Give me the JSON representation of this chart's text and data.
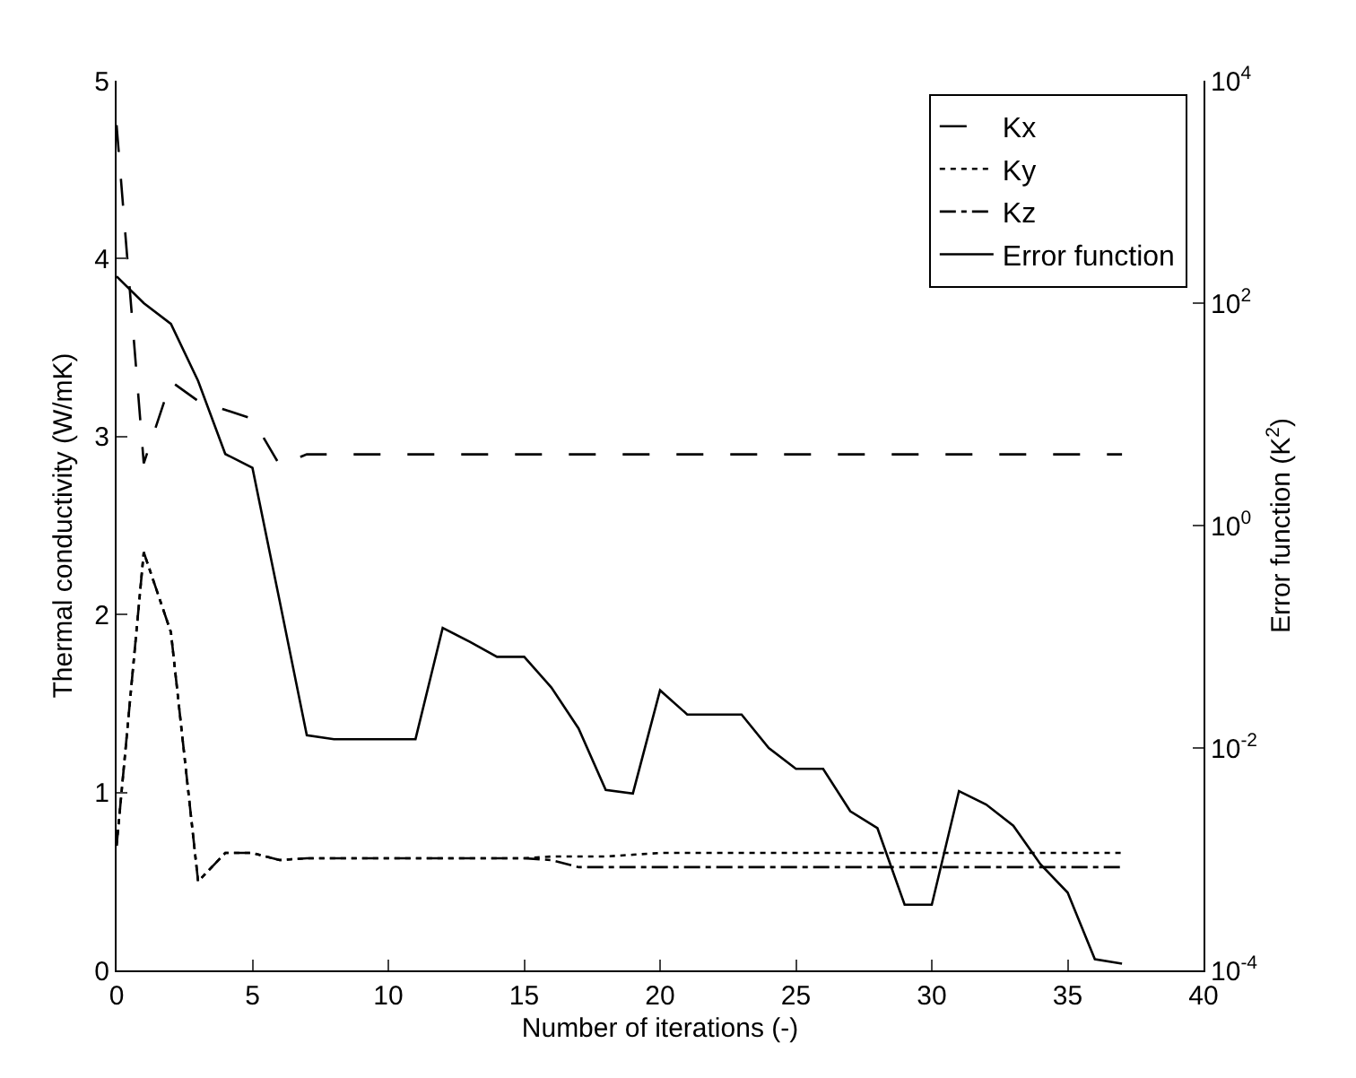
{
  "chart_data": {
    "type": "line",
    "xlabel": "Number of iterations (-)",
    "ylabel": "Thermal conductivity (W/mK)",
    "y2label": "Error function (K$^{2}$)",
    "x": [
      0,
      1,
      2,
      3,
      4,
      5,
      6,
      7,
      8,
      9,
      10,
      11,
      12,
      13,
      14,
      15,
      16,
      17,
      18,
      19,
      20,
      21,
      22,
      23,
      24,
      25,
      26,
      27,
      28,
      29,
      30,
      31,
      32,
      33,
      34,
      35,
      36,
      37
    ],
    "series": [
      {
        "name": "Kx",
        "color": "#000000",
        "line_style": "dashed",
        "values": [
          4.75,
          2.85,
          3.31,
          3.2,
          3.15,
          3.1,
          2.84,
          2.9,
          2.9,
          2.9,
          2.9,
          2.9,
          2.9,
          2.9,
          2.9,
          2.9,
          2.9,
          2.9,
          2.9,
          2.9,
          2.9,
          2.9,
          2.9,
          2.9,
          2.9,
          2.9,
          2.9,
          2.9,
          2.9,
          2.9,
          2.9,
          2.9,
          2.9,
          2.9,
          2.9,
          2.9,
          2.9,
          2.9
        ]
      },
      {
        "name": "Ky",
        "color": "#000000",
        "line_style": "dotted",
        "values": [
          0.7,
          2.35,
          1.9,
          0.5,
          0.66,
          0.66,
          0.62,
          0.63,
          0.63,
          0.63,
          0.63,
          0.63,
          0.63,
          0.63,
          0.63,
          0.63,
          0.64,
          0.64,
          0.64,
          0.65,
          0.66,
          0.66,
          0.66,
          0.66,
          0.66,
          0.66,
          0.66,
          0.66,
          0.66,
          0.66,
          0.66,
          0.66,
          0.66,
          0.66,
          0.66,
          0.66,
          0.66,
          0.66
        ]
      },
      {
        "name": "Kz",
        "color": "#000000",
        "line_style": "dashdot",
        "values": [
          0.7,
          2.35,
          1.9,
          0.5,
          0.66,
          0.66,
          0.62,
          0.63,
          0.63,
          0.63,
          0.63,
          0.63,
          0.63,
          0.63,
          0.63,
          0.63,
          0.62,
          0.58,
          0.58,
          0.58,
          0.58,
          0.58,
          0.58,
          0.58,
          0.58,
          0.58,
          0.58,
          0.58,
          0.58,
          0.58,
          0.58,
          0.58,
          0.58,
          0.58,
          0.58,
          0.58,
          0.58,
          0.58
        ]
      },
      {
        "name": "Error function",
        "color": "#000000",
        "line_style": "solid",
        "axis": "y2",
        "values": [
          174,
          100,
          65,
          20,
          4.4,
          3.3,
          0.21,
          0.013,
          0.012,
          0.012,
          0.012,
          0.012,
          0.12,
          0.09,
          0.066,
          0.066,
          0.035,
          0.015,
          0.0042,
          0.0039,
          0.033,
          0.02,
          0.02,
          0.02,
          0.01,
          0.0065,
          0.0065,
          0.0027,
          0.0019,
          0.00039,
          0.00039,
          0.0041,
          0.0031,
          0.002,
          0.0009,
          0.0005,
          0.000126,
          0.000115
        ]
      }
    ],
    "xlim": [
      0,
      40
    ],
    "xticks": [
      0,
      5,
      10,
      15,
      20,
      25,
      30,
      35,
      40
    ],
    "ylim": [
      0,
      5
    ],
    "yticks": [
      0,
      1,
      2,
      3,
      4,
      5
    ],
    "y2lim": [
      0.0001,
      10000
    ],
    "y2ticks": [
      {
        "value": 0.0001,
        "label": "10$^{-4}$"
      },
      {
        "value": 0.01,
        "label": "10$^{-2}$"
      },
      {
        "value": 1,
        "label": "10$^{0}$"
      },
      {
        "value": 100,
        "label": "10$^{2}$"
      },
      {
        "value": 10000,
        "label": "10$^{4}$"
      }
    ],
    "log": "y2",
    "grid": false,
    "legend": "top right",
    "marker": "none"
  }
}
